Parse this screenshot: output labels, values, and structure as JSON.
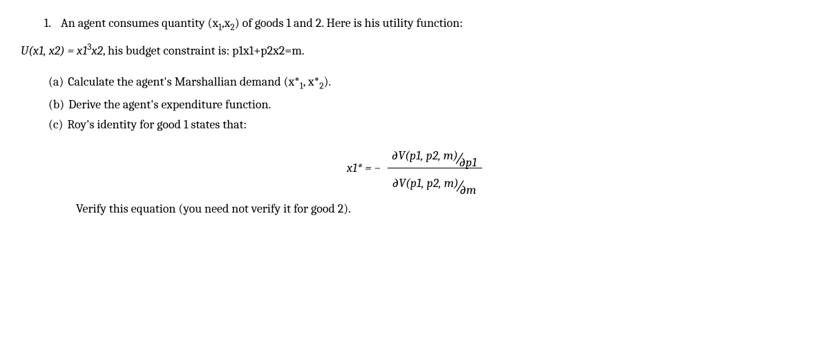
{
  "question": {
    "number": "1.",
    "intro_line1_prefix": "An agent consumes quantity (x",
    "sub1": "1",
    "comma": ",",
    "intro_line1_mid": "x",
    "sub2": "2",
    "intro_line1_suffix": ") of goods 1 and 2. Here is his utility function:",
    "line2_U": "U",
    "line2_args": "(x1, x2) = x1",
    "line2_exp": "3",
    "line2_rest": "x2, his budget constraint is: p1x1+p2x2=m."
  },
  "parts": {
    "a": {
      "label": "(a)",
      "text_pre": "Calculate the agent's Marshallian demand (x*",
      "sub1": "1",
      "mid": ", x*",
      "sub2": "2",
      "post": ")."
    },
    "b": {
      "label": "(b)",
      "text": "Derive the agent's expenditure function."
    },
    "c": {
      "label": "(c)",
      "text": "Roy's identity for good 1 states that:"
    }
  },
  "equation": {
    "lhs": "x1* = −",
    "top_main": "∂V(p1, p2, m)",
    "top_sub": "∂p1",
    "bot_main": "∂V(p1, p2, m)",
    "bot_sub": "∂m"
  },
  "verify": "Verify this equation (you need not verify it for good 2).",
  "style": {
    "font_family": "Cambria, Georgia, serif",
    "font_size_pt": 18,
    "text_color": "#000000",
    "background_color": "#ffffff"
  }
}
